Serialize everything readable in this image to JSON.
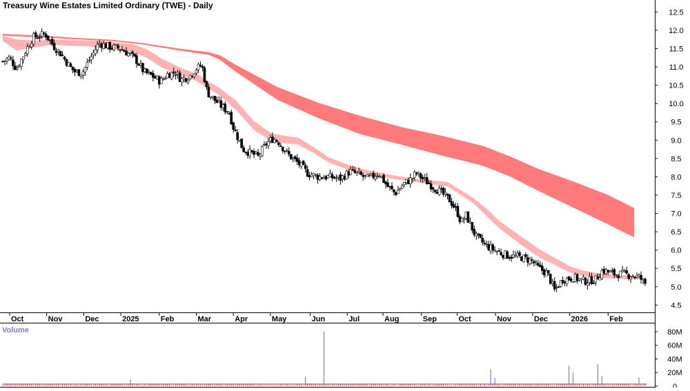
{
  "chart_data": {
    "type": "candlestick",
    "title": "Treasury Wine Estates Limited Ordinary (TWE) - Daily",
    "price_axis": {
      "ylim": [
        4.3,
        12.75
      ],
      "ticks": [
        4.5,
        5.0,
        5.5,
        6.0,
        6.5,
        7.0,
        7.5,
        8.0,
        8.5,
        9.0,
        9.5,
        10.0,
        10.5,
        11.0,
        11.5,
        12.0,
        12.5
      ],
      "tick_labels": [
        "4.5",
        "5.0",
        "5.5",
        "6.0",
        "6.5",
        "7.0",
        "7.5",
        "8.0",
        "8.5",
        "9.0",
        "9.5",
        "10.0",
        "10.5",
        "11.0",
        "11.5",
        "12.0",
        "12.5"
      ]
    },
    "time_axis": {
      "labels": [
        "Oct",
        "Nov",
        "Dec",
        "2025",
        "Feb",
        "Mar",
        "Apr",
        "May",
        "Jun",
        "Jul",
        "Aug",
        "Sep",
        "Oct",
        "Nov",
        "Dec",
        "2026",
        "Feb"
      ],
      "label_days": [
        10,
        64,
        118,
        172,
        228,
        282,
        336,
        390,
        448,
        502,
        554,
        610,
        662,
        718,
        772,
        826,
        882
      ],
      "last_day": 938
    },
    "price_series": {
      "name": "TWE",
      "bar_interval_days": 3,
      "waypoints_day": [
        0,
        10,
        20,
        38,
        44,
        62,
        75,
        85,
        98,
        106,
        116,
        128,
        140,
        154,
        172,
        188,
        196,
        206,
        218,
        230,
        240,
        252,
        260,
        272,
        282,
        290,
        298,
        314,
        330,
        336,
        350,
        372,
        384,
        394,
        402,
        416,
        432,
        444,
        460,
        474,
        492,
        506,
        520,
        532,
        548,
        560,
        572,
        584,
        596,
        602,
        622,
        640,
        652,
        662,
        668,
        675,
        690,
        706,
        722,
        736,
        756,
        772,
        778,
        794,
        804,
        816,
        832,
        848,
        864,
        874,
        890,
        904,
        920,
        928,
        938
      ],
      "waypoints_close": [
        11.15,
        11.25,
        10.95,
        11.6,
        11.8,
        11.9,
        11.55,
        11.35,
        11.0,
        10.85,
        10.85,
        11.25,
        11.65,
        11.55,
        11.5,
        11.3,
        11.15,
        10.85,
        10.75,
        10.6,
        10.8,
        10.85,
        10.65,
        10.75,
        10.95,
        11.05,
        10.3,
        10.0,
        9.75,
        9.35,
        8.75,
        8.55,
        8.9,
        9.05,
        8.95,
        8.6,
        8.35,
        8.1,
        8.0,
        8.0,
        7.95,
        8.15,
        8.05,
        7.95,
        8.1,
        7.75,
        7.55,
        7.8,
        7.95,
        8.1,
        7.8,
        7.55,
        7.35,
        7.05,
        6.75,
        6.95,
        6.35,
        6.1,
        5.95,
        5.85,
        5.8,
        5.7,
        5.55,
        5.35,
        4.9,
        5.2,
        5.25,
        5.15,
        5.2,
        5.45,
        5.35,
        5.35,
        5.3,
        5.25,
        5.05
      ]
    },
    "short_term_ma_band": {
      "color": "#ffb3b3",
      "waypoints_day": [
        0,
        20,
        44,
        70,
        100,
        130,
        160,
        190,
        210,
        232,
        262,
        282,
        300,
        316,
        340,
        366,
        392,
        410,
        430,
        452,
        476,
        500,
        525,
        550,
        575,
        600,
        625,
        648,
        668,
        686,
        704,
        722,
        740,
        760,
        782,
        806,
        826,
        846,
        866,
        886,
        906,
        926
      ],
      "upper": [
        11.85,
        11.75,
        11.72,
        11.74,
        11.73,
        11.72,
        11.68,
        11.62,
        11.48,
        11.22,
        10.95,
        10.82,
        10.6,
        10.42,
        10.08,
        9.52,
        9.18,
        9.12,
        9.07,
        8.82,
        8.52,
        8.35,
        8.21,
        8.11,
        8.02,
        7.95,
        7.9,
        7.86,
        7.63,
        7.42,
        7.15,
        6.82,
        6.57,
        6.31,
        6.02,
        5.77,
        5.56,
        5.44,
        5.37,
        5.34,
        5.31,
        5.3
      ],
      "lower": [
        11.7,
        11.45,
        11.52,
        11.6,
        11.58,
        11.55,
        11.48,
        11.4,
        11.25,
        10.98,
        10.75,
        10.62,
        10.4,
        10.22,
        9.82,
        9.28,
        8.96,
        8.92,
        8.88,
        8.66,
        8.38,
        8.22,
        8.09,
        8.01,
        7.92,
        7.86,
        7.8,
        7.74,
        7.5,
        7.28,
        6.95,
        6.62,
        6.36,
        6.08,
        5.8,
        5.58,
        5.39,
        5.29,
        5.25,
        5.23,
        5.21,
        5.2
      ]
    },
    "long_term_ma_band": {
      "color": "#ff7b7b",
      "waypoints_day": [
        0,
        60,
        100,
        160,
        200,
        250,
        300,
        316,
        340,
        400,
        460,
        520,
        580,
        640,
        700,
        740,
        780,
        830,
        880,
        920
      ],
      "upper": [
        11.9,
        11.85,
        11.8,
        11.74,
        11.66,
        11.52,
        11.4,
        11.32,
        11.05,
        10.45,
        10.02,
        9.67,
        9.36,
        9.12,
        8.84,
        8.55,
        8.22,
        7.88,
        7.52,
        7.15
      ],
      "lower": [
        11.85,
        11.8,
        11.76,
        11.7,
        11.62,
        11.47,
        11.33,
        11.2,
        10.86,
        10.1,
        9.6,
        9.17,
        8.88,
        8.58,
        8.3,
        8.0,
        7.62,
        7.17,
        6.72,
        6.35
      ]
    },
    "volume": {
      "label": "Volume",
      "color": "#8080c0",
      "average_line_color": "#e04040",
      "ylim": [
        0,
        82
      ],
      "ticks": [
        0,
        20,
        40,
        60,
        80
      ],
      "tick_labels": [
        "0",
        "20M",
        "40M",
        "60M",
        "80M"
      ],
      "baseline_millions": 2.5,
      "average_millions": 3.0,
      "spikes_day": [
        186,
        440,
        468,
        710,
        718,
        824,
        830,
        868,
        872,
        926
      ],
      "spikes_millions": [
        10,
        14,
        80,
        25,
        12,
        30,
        20,
        32,
        15,
        13
      ]
    }
  }
}
